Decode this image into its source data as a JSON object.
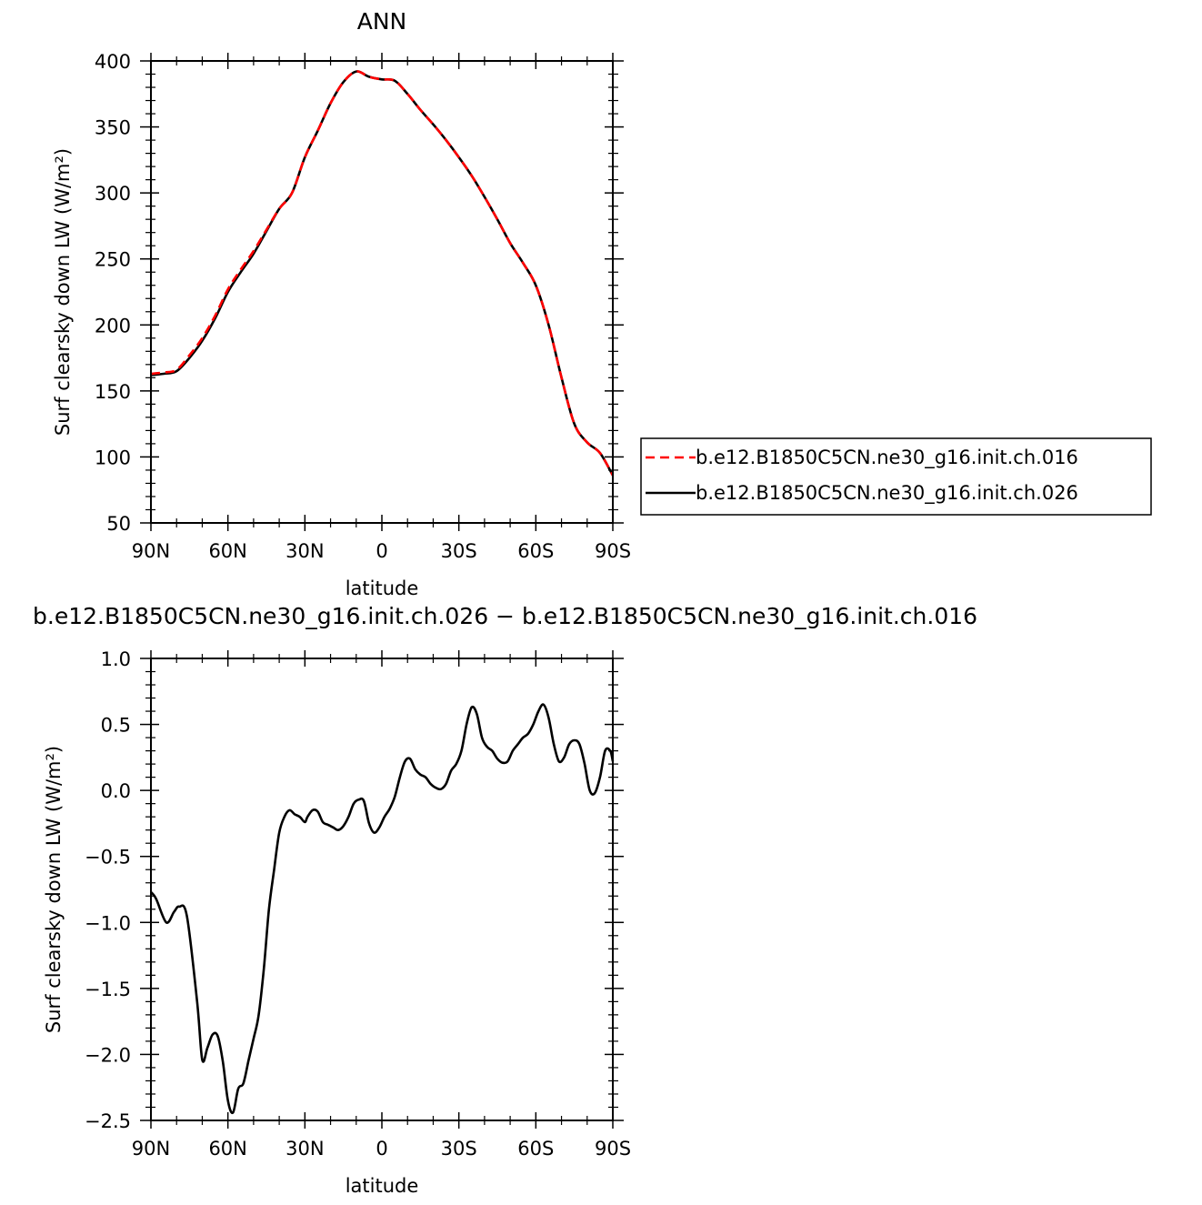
{
  "chart_data": [
    {
      "type": "line",
      "title": "ANN",
      "xlabel": "latitude",
      "ylabel": "Surf clearsky down LW (W/m²)",
      "xlim": [
        90,
        -90
      ],
      "ylim": [
        50,
        400
      ],
      "x_ticks": [
        90,
        60,
        30,
        0,
        -30,
        -60,
        -90
      ],
      "x_tick_labels": [
        "90N",
        "60N",
        "30N",
        "0",
        "30S",
        "60S",
        "90S"
      ],
      "y_ticks": [
        50,
        100,
        150,
        200,
        250,
        300,
        350,
        400
      ],
      "y_tick_labels": [
        "50",
        "100",
        "150",
        "200",
        "250",
        "300",
        "350",
        "400"
      ],
      "legend_position": "right",
      "series": [
        {
          "name": "b.e12.B1850C5CN.ne30_g16.init.ch.016",
          "color": "#ff0000",
          "dash": "dashed",
          "x": [
            90,
            85,
            80,
            75,
            70,
            65,
            60,
            55,
            50,
            45,
            40,
            35,
            30,
            25,
            20,
            15,
            10,
            5,
            0,
            -5,
            -10,
            -15,
            -20,
            -25,
            -30,
            -35,
            -40,
            -45,
            -50,
            -55,
            -60,
            -65,
            -70,
            -75,
            -80,
            -85,
            -90
          ],
          "y": [
            163,
            164,
            166,
            177,
            190,
            207,
            227,
            242,
            256,
            272,
            288,
            300,
            327,
            347,
            368,
            384,
            392,
            388,
            386,
            385,
            375,
            363,
            352,
            340,
            327,
            313,
            297,
            280,
            262,
            247,
            230,
            200,
            160,
            125,
            111,
            103,
            86
          ]
        },
        {
          "name": "b.e12.B1850C5CN.ne30_g16.init.ch.026",
          "color": "#000000",
          "dash": "solid",
          "x": [
            90,
            85,
            80,
            75,
            70,
            65,
            60,
            55,
            50,
            45,
            40,
            35,
            30,
            25,
            20,
            15,
            10,
            5,
            0,
            -5,
            -10,
            -15,
            -20,
            -25,
            -30,
            -35,
            -40,
            -45,
            -50,
            -55,
            -60,
            -65,
            -70,
            -75,
            -80,
            -85,
            -90
          ],
          "y": [
            162,
            163,
            165,
            175,
            188,
            205,
            225,
            240,
            254,
            271,
            288,
            300,
            327,
            347,
            368,
            384,
            392,
            388,
            386,
            385,
            375,
            363,
            352,
            340,
            327,
            313,
            297,
            280,
            262,
            247,
            230,
            200,
            160,
            125,
            111,
            103,
            86
          ]
        }
      ]
    },
    {
      "type": "line",
      "title": "b.e12.B1850C5CN.ne30_g16.init.ch.026 − b.e12.B1850C5CN.ne30_g16.init.ch.016",
      "xlabel": "latitude",
      "ylabel": "Surf clearsky down LW (W/m²)",
      "xlim": [
        90,
        -90
      ],
      "ylim": [
        -2.5,
        1.0
      ],
      "x_ticks": [
        90,
        60,
        30,
        0,
        -30,
        -60,
        -90
      ],
      "x_tick_labels": [
        "90N",
        "60N",
        "30N",
        "0",
        "30S",
        "60S",
        "90S"
      ],
      "y_ticks": [
        -2.5,
        -2.0,
        -1.5,
        -1.0,
        -0.5,
        0.0,
        0.5,
        1.0
      ],
      "y_tick_labels": [
        "−2.5",
        "−2.0",
        "−1.5",
        "−1.0",
        "−0.5",
        "0.0",
        "0.5",
        "1.0"
      ],
      "series": [
        {
          "color": "#000000",
          "x": [
            90,
            88,
            84,
            81,
            79,
            76,
            72,
            70,
            68,
            66,
            64,
            62,
            60,
            58,
            56,
            54,
            52,
            50,
            48,
            46,
            44,
            42,
            40,
            38,
            36,
            34,
            32,
            30,
            29,
            27,
            25,
            23,
            21,
            19,
            17,
            15,
            13,
            11,
            9,
            7,
            5,
            3,
            1,
            -1,
            -3,
            -5,
            -7,
            -9,
            -11,
            -13,
            -15,
            -17,
            -19,
            -21,
            -23,
            -25,
            -27,
            -29,
            -31,
            -33,
            -35,
            -37,
            -39,
            -41,
            -43,
            -45,
            -47,
            -49,
            -51,
            -53,
            -55,
            -57,
            -59,
            -61,
            -63,
            -65,
            -67,
            -69,
            -71,
            -73,
            -75,
            -77,
            -79,
            -81,
            -83,
            -85,
            -87,
            -89,
            -90
          ],
          "y": [
            -0.77,
            -0.82,
            -1.0,
            -0.92,
            -0.88,
            -0.95,
            -1.6,
            -2.04,
            -1.95,
            -1.85,
            -1.86,
            -2.05,
            -2.35,
            -2.44,
            -2.26,
            -2.22,
            -2.05,
            -1.88,
            -1.7,
            -1.35,
            -0.9,
            -0.6,
            -0.32,
            -0.2,
            -0.15,
            -0.18,
            -0.2,
            -0.24,
            -0.2,
            -0.15,
            -0.16,
            -0.24,
            -0.26,
            -0.28,
            -0.3,
            -0.27,
            -0.2,
            -0.1,
            -0.07,
            -0.08,
            -0.25,
            -0.32,
            -0.28,
            -0.2,
            -0.14,
            -0.05,
            0.1,
            0.22,
            0.24,
            0.16,
            0.12,
            0.1,
            0.05,
            0.02,
            0.01,
            0.05,
            0.15,
            0.2,
            0.3,
            0.5,
            0.63,
            0.58,
            0.4,
            0.33,
            0.3,
            0.24,
            0.21,
            0.22,
            0.3,
            0.35,
            0.4,
            0.43,
            0.5,
            0.6,
            0.65,
            0.55,
            0.35,
            0.22,
            0.25,
            0.35,
            0.38,
            0.35,
            0.2,
            0.0,
            -0.02,
            0.1,
            0.3,
            0.3,
            0.22
          ]
        }
      ]
    }
  ]
}
